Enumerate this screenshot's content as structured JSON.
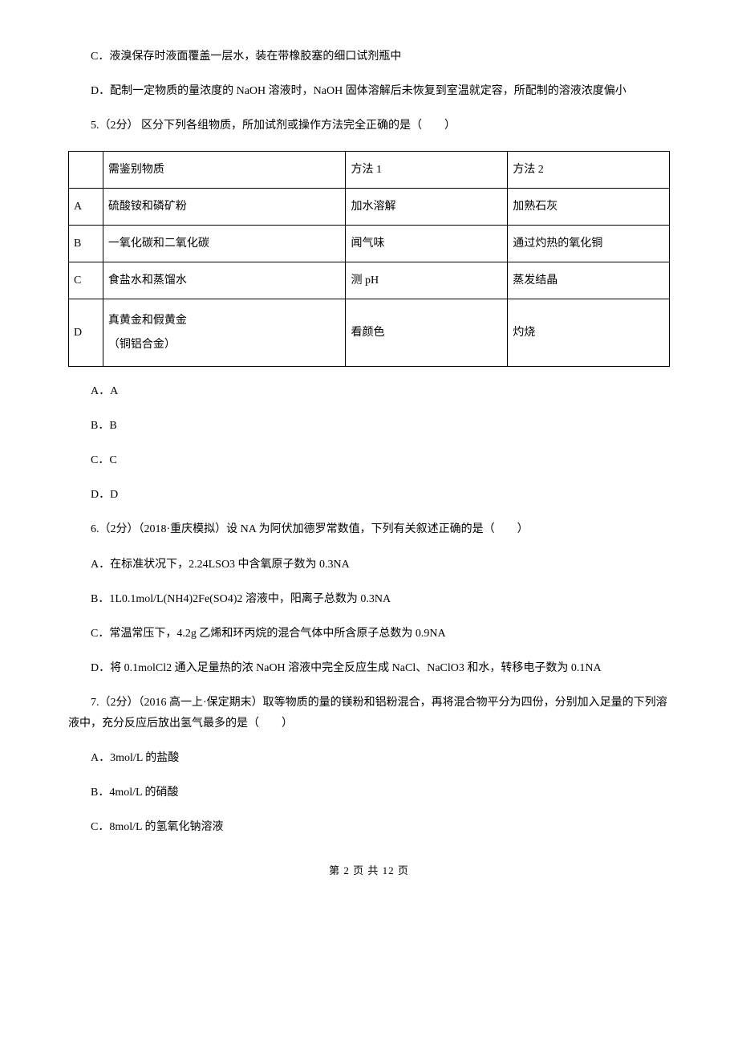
{
  "q4": {
    "optC": "C．液溴保存时液面覆盖一层水，装在带橡胶塞的细口试剂瓶中",
    "optD": "D．配制一定物质的量浓度的 NaOH 溶液时，NaOH 固体溶解后未恢复到室温就定容，所配制的溶液浓度偏小"
  },
  "q5": {
    "stem": "5.（2分） 区分下列各组物质，所加试剂或操作方法完全正确的是（　　）",
    "table": {
      "header": [
        "",
        "需鉴别物质",
        "方法 1",
        "方法 2"
      ],
      "rows": [
        [
          "A",
          "硫酸铵和磷矿粉",
          "加水溶解",
          "加熟石灰"
        ],
        [
          "B",
          "一氧化碳和二氧化碳",
          "闻气味",
          "通过灼热的氧化铜"
        ],
        [
          "C",
          "食盐水和蒸馏水",
          "测 pH",
          "蒸发结晶"
        ],
        [
          "D",
          [
            "真黄金和假黄金",
            "（铜铝合金）"
          ],
          "看颜色",
          "灼烧"
        ]
      ]
    },
    "optA": "A．A",
    "optB": "B．B",
    "optC": "C．C",
    "optD": "D．D"
  },
  "q6": {
    "stem": "6.（2分）（2018·重庆模拟）设 NA 为阿伏加德罗常数值，下列有关叙述正确的是（　　）",
    "optA": "A．在标准状况下，2.24LSO3 中含氧原子数为 0.3NA",
    "optB": "B．1L0.1mol/L(NH4)2Fe(SO4)2 溶液中，阳离子总数为 0.3NA",
    "optC": "C．常温常压下，4.2g 乙烯和环丙烷的混合气体中所含原子总数为 0.9NA",
    "optD": "D．将 0.1molCl2 通入足量热的浓 NaOH 溶液中完全反应生成 NaCl、NaClO3 和水，转移电子数为 0.1NA"
  },
  "q7": {
    "stem": "7.（2分）（2016 高一上·保定期末）取等物质的量的镁粉和铝粉混合，再将混合物平分为四份，分别加入足量的下列溶液中，充分反应后放出氢气最多的是（　　）",
    "optA": "A．3mol/L 的盐酸",
    "optB": "B．4mol/L 的硝酸",
    "optC": "C．8mol/L 的氢氧化钠溶液"
  },
  "pager": "第 2 页 共 12 页"
}
